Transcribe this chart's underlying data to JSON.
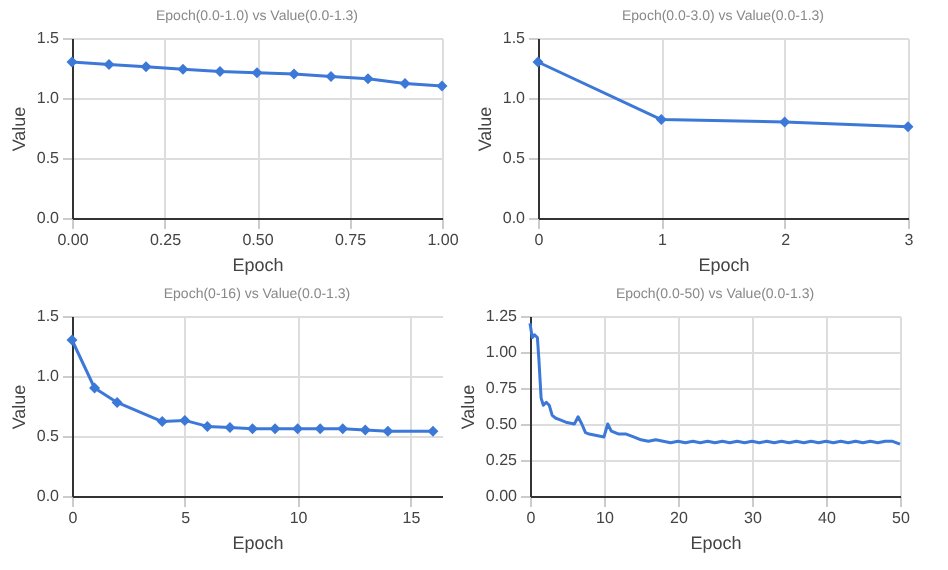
{
  "chart_data": [
    {
      "type": "line",
      "title": "Epoch(0.0-1.0) vs Value(0.0-1.3)",
      "xlabel": "Epoch",
      "ylabel": "Value",
      "marker": "diamond",
      "grid": true,
      "x": [
        0,
        0.1,
        0.2,
        0.3,
        0.4,
        0.5,
        0.6,
        0.7,
        0.8,
        0.9,
        1.0
      ],
      "series": [
        {
          "color": "#3c78d8",
          "values": [
            1.3,
            1.28,
            1.26,
            1.24,
            1.22,
            1.21,
            1.2,
            1.18,
            1.16,
            1.12,
            1.1
          ]
        }
      ],
      "xlim": [
        0,
        1
      ],
      "xticks": [
        {
          "value": 0,
          "label": "0.00"
        },
        0.25,
        {
          "value": 0.5,
          "label": "0.50"
        },
        0.75,
        {
          "value": 1,
          "label": "1.00"
        }
      ],
      "ylim": [
        0,
        1.5
      ],
      "yticks": [
        {
          "value": 0,
          "label": "0.0"
        },
        0.5,
        {
          "value": 1,
          "label": "1.0"
        },
        1.5
      ]
    },
    {
      "type": "line",
      "title": "Epoch(0.0-3.0) vs Value(0.0-1.3)",
      "xlabel": "Epoch",
      "ylabel": "Value",
      "marker": "diamond",
      "grid": true,
      "x": [
        0,
        1,
        2,
        3
      ],
      "series": [
        {
          "color": "#3c78d8",
          "values": [
            1.3,
            0.82,
            0.8,
            0.76
          ]
        }
      ],
      "xlim": [
        0,
        3
      ],
      "xticks": [
        0,
        1,
        2,
        3
      ],
      "ylim": [
        0,
        1.5
      ],
      "yticks": [
        {
          "value": 0,
          "label": "0.0"
        },
        0.5,
        {
          "value": 1,
          "label": "1.0"
        },
        1.5
      ]
    },
    {
      "type": "line",
      "title": "Epoch(0-16) vs Value(0.0-1.3)",
      "xlabel": "Epoch",
      "ylabel": "Value",
      "marker": "diamond",
      "grid": true,
      "x": [
        0,
        1,
        2,
        4,
        5,
        6,
        7,
        8,
        9,
        10,
        11,
        12,
        13,
        14,
        16
      ],
      "series": [
        {
          "color": "#3c78d8",
          "values": [
            1.3,
            0.9,
            0.78,
            0.62,
            0.63,
            0.58,
            0.57,
            0.56,
            0.56,
            0.56,
            0.56,
            0.56,
            0.55,
            0.54,
            0.54
          ]
        }
      ],
      "xlim": [
        0,
        16.4
      ],
      "xticks": [
        0,
        5,
        10,
        15
      ],
      "ylim": [
        0,
        1.5
      ],
      "yticks": [
        {
          "value": 0,
          "label": "0.0"
        },
        0.5,
        {
          "value": 1,
          "label": "1.0"
        },
        1.5
      ]
    },
    {
      "type": "line",
      "title": "Epoch(0.0-50) vs Value(0.0-1.3)",
      "xlabel": "Epoch",
      "ylabel": "Value",
      "marker": "none",
      "grid": true,
      "x": [
        0,
        0.3,
        0.6,
        1,
        1.2,
        1.5,
        1.8,
        2.2,
        2.6,
        3,
        3.5,
        4,
        5,
        6,
        6.5,
        7,
        7.5,
        8,
        9,
        10,
        10.5,
        11,
        12,
        13,
        14,
        15,
        16,
        17,
        18,
        19,
        20,
        21,
        22,
        23,
        24,
        25,
        26,
        27,
        28,
        29,
        30,
        31,
        32,
        33,
        34,
        35,
        36,
        37,
        38,
        39,
        40,
        41,
        42,
        43,
        44,
        45,
        46,
        47,
        48,
        49,
        50
      ],
      "series": [
        {
          "color": "#3c78d8",
          "values": [
            1.2,
            1.1,
            1.12,
            1.1,
            0.95,
            0.68,
            0.63,
            0.65,
            0.63,
            0.56,
            0.54,
            0.53,
            0.51,
            0.5,
            0.55,
            0.5,
            0.44,
            0.43,
            0.42,
            0.41,
            0.5,
            0.45,
            0.43,
            0.43,
            0.41,
            0.39,
            0.38,
            0.39,
            0.38,
            0.37,
            0.38,
            0.37,
            0.38,
            0.37,
            0.38,
            0.37,
            0.38,
            0.37,
            0.38,
            0.37,
            0.38,
            0.37,
            0.38,
            0.37,
            0.38,
            0.37,
            0.38,
            0.37,
            0.38,
            0.37,
            0.38,
            0.37,
            0.38,
            0.37,
            0.38,
            0.37,
            0.38,
            0.37,
            0.38,
            0.38,
            0.36
          ]
        }
      ],
      "xlim": [
        0,
        50
      ],
      "xticks": [
        0,
        10,
        20,
        30,
        40,
        50
      ],
      "ylim": [
        0,
        1.25
      ],
      "yticks": [
        {
          "value": 0,
          "label": "0.00"
        },
        0.25,
        {
          "value": 0.5,
          "label": "0.50"
        },
        0.75,
        {
          "value": 1,
          "label": "1.00"
        },
        1.25
      ]
    }
  ]
}
